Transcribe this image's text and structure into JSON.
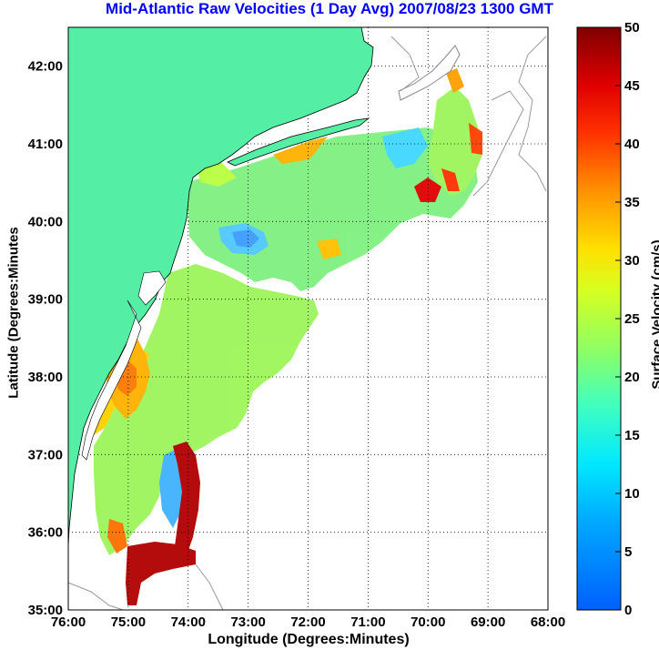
{
  "title": "Mid-Atlantic Raw Velocities (1 Day Avg) 2007/08/23 1300 GMT",
  "xlabel": "Longitude (Degrees:Minutes)",
  "ylabel": "Latitude (Degrees:Minutes",
  "colorbar": {
    "label": "Surface Velocity (cm/s)",
    "min": 0,
    "max": 50,
    "ticks": [
      "0",
      "5",
      "10",
      "15",
      "20",
      "25",
      "30",
      "35",
      "40",
      "45",
      "50"
    ],
    "colormap": "jet"
  },
  "map": {
    "xticks": [
      "76:00",
      "75:00",
      "74:00",
      "73:00",
      "72:00",
      "71:00",
      "70:00",
      "69:00",
      "68:00"
    ],
    "yticks": [
      "42:00",
      "41:00",
      "40:00",
      "39:00",
      "38:00",
      "37:00",
      "36:00",
      "35:00"
    ],
    "lon_range": [
      -76,
      -68
    ],
    "lat_range": [
      35,
      42.5
    ],
    "grid": "dotted",
    "land_color": "#55eea5",
    "ocean_color": "#ffffff"
  }
}
